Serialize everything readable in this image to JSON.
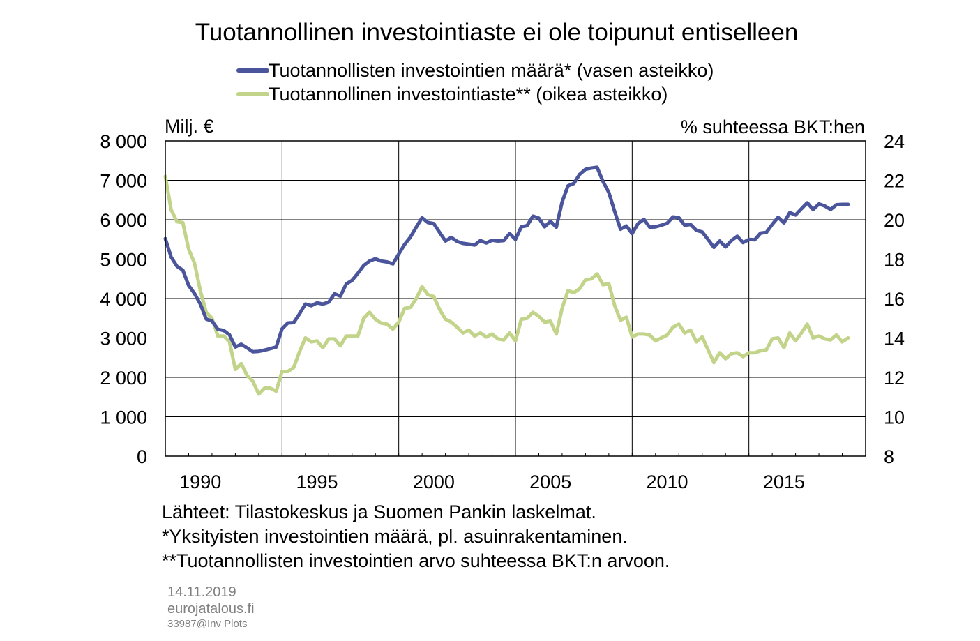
{
  "chart_data": {
    "type": "line",
    "title": "Tuotannollinen investointiaste ei ole toipunut entiselleen",
    "y_left_label": "Milj. €",
    "y_right_label": "% suhteessa BKT:hen",
    "y_left_lim": [
      0,
      8000
    ],
    "y_right_lim": [
      8,
      24
    ],
    "y_left_ticks": [
      "0",
      "1 000",
      "2 000",
      "3 000",
      "4 000",
      "5 000",
      "6 000",
      "7 000",
      "8 000"
    ],
    "y_right_ticks": [
      "8",
      "10",
      "12",
      "14",
      "16",
      "18",
      "20",
      "22",
      "24"
    ],
    "x_lim": [
      1989.0,
      2019.0
    ],
    "x_ticks": [
      "1990",
      "1995",
      "2000",
      "2005",
      "2010",
      "2015"
    ],
    "grid": true,
    "legend_position": "top-center",
    "series": [
      {
        "name": "Tuotannollisten investointien määrä* (vasen asteikko)",
        "axis": "left",
        "color": "#4b559b",
        "points": [
          [
            1989.0,
            5520
          ],
          [
            1989.25,
            5050
          ],
          [
            1989.5,
            4820
          ],
          [
            1989.75,
            4720
          ],
          [
            1990.0,
            4330
          ],
          [
            1990.25,
            4130
          ],
          [
            1990.5,
            3860
          ],
          [
            1990.75,
            3480
          ],
          [
            1991.0,
            3430
          ],
          [
            1991.25,
            3220
          ],
          [
            1991.5,
            3190
          ],
          [
            1991.75,
            3080
          ],
          [
            1992.0,
            2770
          ],
          [
            1992.25,
            2840
          ],
          [
            1992.5,
            2750
          ],
          [
            1992.75,
            2650
          ],
          [
            1993.0,
            2660
          ],
          [
            1993.25,
            2690
          ],
          [
            1993.5,
            2730
          ],
          [
            1993.75,
            2770
          ],
          [
            1994.0,
            3230
          ],
          [
            1994.25,
            3380
          ],
          [
            1994.5,
            3390
          ],
          [
            1994.75,
            3610
          ],
          [
            1995.0,
            3860
          ],
          [
            1995.25,
            3820
          ],
          [
            1995.5,
            3890
          ],
          [
            1995.75,
            3860
          ],
          [
            1996.0,
            3910
          ],
          [
            1996.25,
            4120
          ],
          [
            1996.5,
            4060
          ],
          [
            1996.75,
            4370
          ],
          [
            1997.0,
            4460
          ],
          [
            1997.25,
            4640
          ],
          [
            1997.5,
            4840
          ],
          [
            1997.75,
            4950
          ],
          [
            1998.0,
            5010
          ],
          [
            1998.25,
            4950
          ],
          [
            1998.5,
            4930
          ],
          [
            1998.75,
            4880
          ],
          [
            1999.0,
            5130
          ],
          [
            1999.25,
            5370
          ],
          [
            1999.5,
            5560
          ],
          [
            1999.75,
            5810
          ],
          [
            2000.0,
            6050
          ],
          [
            2000.25,
            5930
          ],
          [
            2000.5,
            5900
          ],
          [
            2000.75,
            5680
          ],
          [
            2001.0,
            5460
          ],
          [
            2001.25,
            5550
          ],
          [
            2001.5,
            5450
          ],
          [
            2001.75,
            5400
          ],
          [
            2002.0,
            5380
          ],
          [
            2002.25,
            5360
          ],
          [
            2002.5,
            5470
          ],
          [
            2002.75,
            5410
          ],
          [
            2003.0,
            5480
          ],
          [
            2003.25,
            5460
          ],
          [
            2003.5,
            5470
          ],
          [
            2003.75,
            5650
          ],
          [
            2004.0,
            5500
          ],
          [
            2004.25,
            5820
          ],
          [
            2004.5,
            5850
          ],
          [
            2004.75,
            6090
          ],
          [
            2005.0,
            6040
          ],
          [
            2005.25,
            5820
          ],
          [
            2005.5,
            5960
          ],
          [
            2005.75,
            5810
          ],
          [
            2006.0,
            6450
          ],
          [
            2006.25,
            6860
          ],
          [
            2006.5,
            6920
          ],
          [
            2006.75,
            7150
          ],
          [
            2007.0,
            7280
          ],
          [
            2007.25,
            7310
          ],
          [
            2007.5,
            7330
          ],
          [
            2007.75,
            6970
          ],
          [
            2008.0,
            6690
          ],
          [
            2008.25,
            6210
          ],
          [
            2008.5,
            5760
          ],
          [
            2008.75,
            5840
          ],
          [
            2009.0,
            5650
          ],
          [
            2009.25,
            5900
          ],
          [
            2009.5,
            6010
          ],
          [
            2009.75,
            5810
          ],
          [
            2010.0,
            5820
          ],
          [
            2010.25,
            5860
          ],
          [
            2010.5,
            5910
          ],
          [
            2010.75,
            6070
          ],
          [
            2011.0,
            6050
          ],
          [
            2011.25,
            5860
          ],
          [
            2011.5,
            5880
          ],
          [
            2011.75,
            5730
          ],
          [
            2012.0,
            5690
          ],
          [
            2012.25,
            5500
          ],
          [
            2012.5,
            5300
          ],
          [
            2012.75,
            5460
          ],
          [
            2013.0,
            5310
          ],
          [
            2013.25,
            5470
          ],
          [
            2013.5,
            5580
          ],
          [
            2013.75,
            5420
          ],
          [
            2014.0,
            5500
          ],
          [
            2014.25,
            5490
          ],
          [
            2014.5,
            5660
          ],
          [
            2014.75,
            5680
          ],
          [
            2015.0,
            5880
          ],
          [
            2015.25,
            6060
          ],
          [
            2015.5,
            5920
          ],
          [
            2015.75,
            6180
          ],
          [
            2016.0,
            6120
          ],
          [
            2016.25,
            6280
          ],
          [
            2016.5,
            6430
          ],
          [
            2016.75,
            6260
          ],
          [
            2017.0,
            6400
          ],
          [
            2017.25,
            6350
          ],
          [
            2017.5,
            6260
          ],
          [
            2017.75,
            6380
          ],
          [
            2018.0,
            6390
          ],
          [
            2018.25,
            6390
          ]
        ]
      },
      {
        "name": "Tuotannollinen investointiaste** (oikea asteikko)",
        "axis": "right",
        "color": "#c2d38a",
        "points": [
          [
            1989.0,
            22.2
          ],
          [
            1989.25,
            20.5
          ],
          [
            1989.5,
            19.9
          ],
          [
            1989.75,
            19.85
          ],
          [
            1990.0,
            18.5
          ],
          [
            1990.25,
            17.8
          ],
          [
            1990.5,
            16.4
          ],
          [
            1990.75,
            15.3
          ],
          [
            1991.0,
            15.0
          ],
          [
            1991.25,
            14.1
          ],
          [
            1991.5,
            14.1
          ],
          [
            1991.75,
            13.8
          ],
          [
            1992.0,
            12.4
          ],
          [
            1992.25,
            12.7
          ],
          [
            1992.5,
            12.1
          ],
          [
            1992.75,
            11.8
          ],
          [
            1993.0,
            11.15
          ],
          [
            1993.25,
            11.45
          ],
          [
            1993.5,
            11.45
          ],
          [
            1993.75,
            11.3
          ],
          [
            1994.0,
            12.3
          ],
          [
            1994.25,
            12.3
          ],
          [
            1994.5,
            12.5
          ],
          [
            1994.75,
            13.3
          ],
          [
            1995.0,
            14.0
          ],
          [
            1995.25,
            13.8
          ],
          [
            1995.5,
            13.85
          ],
          [
            1995.75,
            13.5
          ],
          [
            1996.0,
            13.95
          ],
          [
            1996.25,
            13.95
          ],
          [
            1996.5,
            13.6
          ],
          [
            1996.75,
            14.1
          ],
          [
            1997.0,
            14.1
          ],
          [
            1997.25,
            14.1
          ],
          [
            1997.5,
            15.0
          ],
          [
            1997.75,
            15.3
          ],
          [
            1998.0,
            14.95
          ],
          [
            1998.25,
            14.75
          ],
          [
            1998.5,
            14.7
          ],
          [
            1998.75,
            14.45
          ],
          [
            1999.0,
            14.8
          ],
          [
            1999.25,
            15.5
          ],
          [
            1999.5,
            15.55
          ],
          [
            1999.75,
            16.0
          ],
          [
            2000.0,
            16.6
          ],
          [
            2000.25,
            16.2
          ],
          [
            2000.5,
            16.1
          ],
          [
            2000.75,
            15.45
          ],
          [
            2001.0,
            14.95
          ],
          [
            2001.25,
            14.8
          ],
          [
            2001.5,
            14.55
          ],
          [
            2001.75,
            14.25
          ],
          [
            2002.0,
            14.4
          ],
          [
            2002.25,
            14.1
          ],
          [
            2002.5,
            14.25
          ],
          [
            2002.75,
            14.05
          ],
          [
            2003.0,
            14.2
          ],
          [
            2003.25,
            13.95
          ],
          [
            2003.5,
            13.9
          ],
          [
            2003.75,
            14.25
          ],
          [
            2004.0,
            13.85
          ],
          [
            2004.25,
            14.95
          ],
          [
            2004.5,
            15.0
          ],
          [
            2004.75,
            15.3
          ],
          [
            2005.0,
            15.1
          ],
          [
            2005.25,
            14.8
          ],
          [
            2005.5,
            14.85
          ],
          [
            2005.75,
            14.2
          ],
          [
            2006.0,
            15.5
          ],
          [
            2006.25,
            16.4
          ],
          [
            2006.5,
            16.3
          ],
          [
            2006.75,
            16.5
          ],
          [
            2007.0,
            16.95
          ],
          [
            2007.25,
            17.0
          ],
          [
            2007.5,
            17.25
          ],
          [
            2007.75,
            16.7
          ],
          [
            2008.0,
            16.75
          ],
          [
            2008.25,
            15.65
          ],
          [
            2008.5,
            14.9
          ],
          [
            2008.75,
            15.05
          ],
          [
            2009.0,
            14.05
          ],
          [
            2009.25,
            14.2
          ],
          [
            2009.5,
            14.2
          ],
          [
            2009.75,
            14.15
          ],
          [
            2010.0,
            13.85
          ],
          [
            2010.25,
            14.0
          ],
          [
            2010.5,
            14.15
          ],
          [
            2010.75,
            14.55
          ],
          [
            2011.0,
            14.7
          ],
          [
            2011.25,
            14.25
          ],
          [
            2011.5,
            14.4
          ],
          [
            2011.75,
            13.8
          ],
          [
            2012.0,
            14.05
          ],
          [
            2012.25,
            13.4
          ],
          [
            2012.5,
            12.75
          ],
          [
            2012.75,
            13.25
          ],
          [
            2013.0,
            12.95
          ],
          [
            2013.25,
            13.2
          ],
          [
            2013.5,
            13.25
          ],
          [
            2013.75,
            13.05
          ],
          [
            2014.0,
            13.25
          ],
          [
            2014.25,
            13.25
          ],
          [
            2014.5,
            13.35
          ],
          [
            2014.75,
            13.4
          ],
          [
            2015.0,
            13.95
          ],
          [
            2015.25,
            14.0
          ],
          [
            2015.5,
            13.5
          ],
          [
            2015.75,
            14.25
          ],
          [
            2016.0,
            13.85
          ],
          [
            2016.25,
            14.25
          ],
          [
            2016.5,
            14.7
          ],
          [
            2016.75,
            14.0
          ],
          [
            2017.0,
            14.1
          ],
          [
            2017.25,
            13.95
          ],
          [
            2017.5,
            13.9
          ],
          [
            2017.75,
            14.15
          ],
          [
            2018.0,
            13.8
          ],
          [
            2018.25,
            14.0
          ]
        ]
      }
    ]
  },
  "notes": [
    "Lähteet: Tilastokeskus ja Suomen Pankin laskelmat.",
    "*Yksityisten investointien määrä, pl. asuinrakentaminen.",
    "**Tuotannollisten investointien arvo suhteessa BKT:n arvoon."
  ],
  "meta": {
    "date": "14.11.2019",
    "site": "eurojatalous.fi",
    "code": "33987@Inv  Plots"
  }
}
